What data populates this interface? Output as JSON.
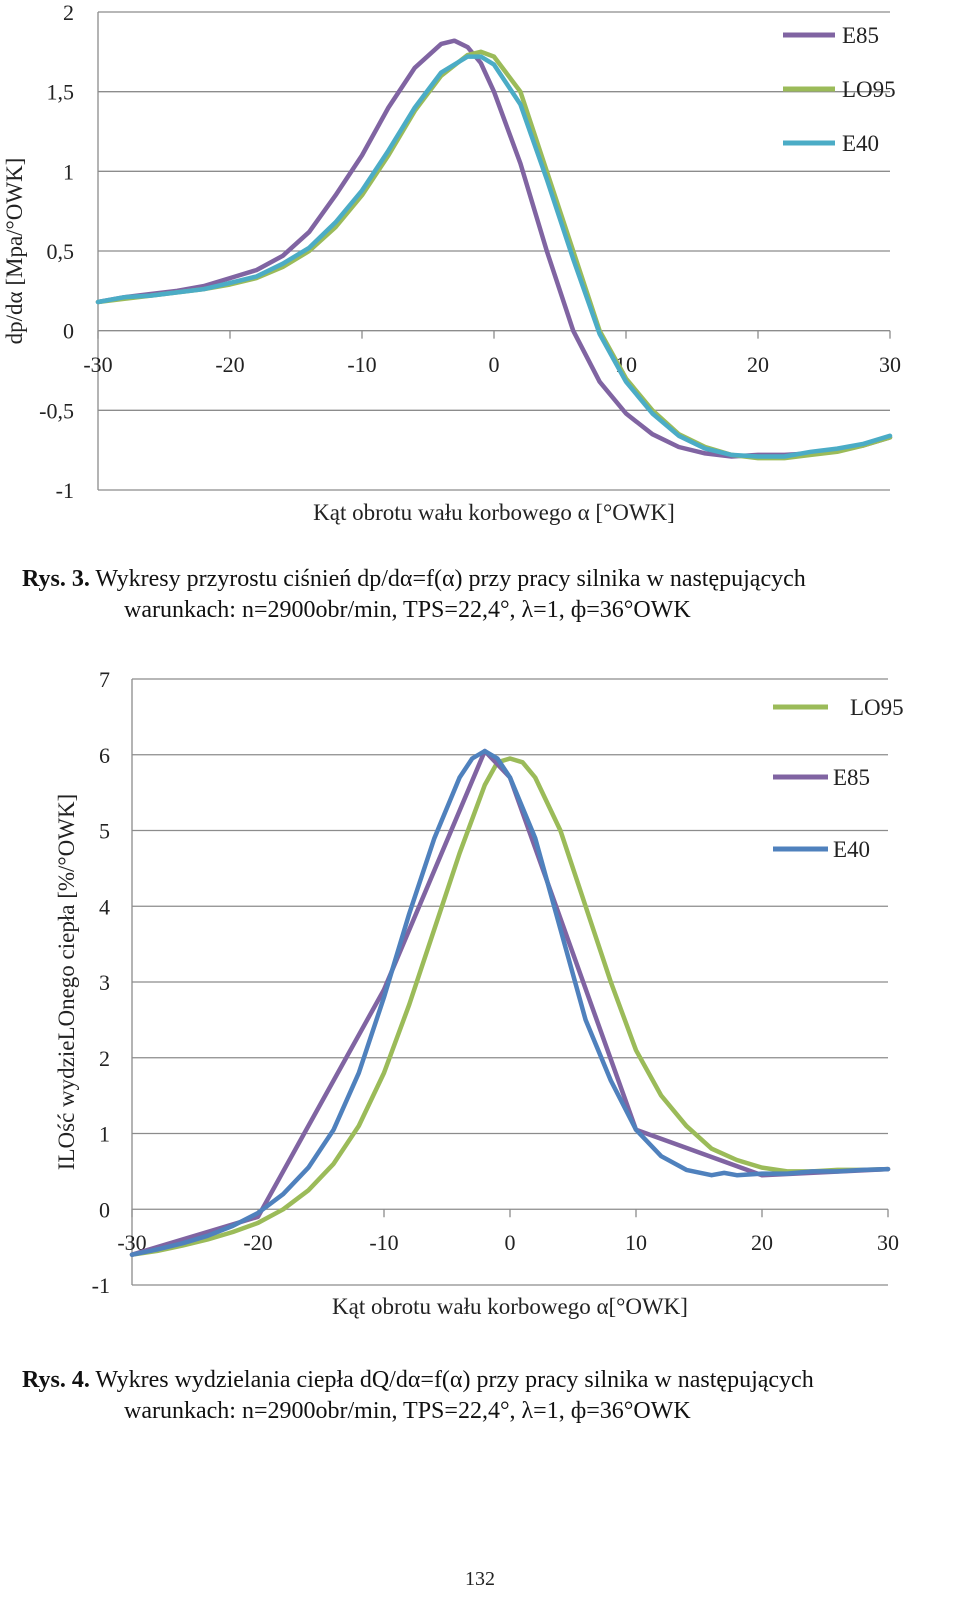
{
  "chart_data": [
    {
      "type": "line",
      "xlabel": "Kąt obrotu wału korbowego α [°OWK]",
      "ylabel": "dp/dα [Mpa/°OWK]",
      "xlim": [
        -30,
        30
      ],
      "ylim": [
        -1,
        2
      ],
      "x_ticks": [
        "-30",
        "-20",
        "-10",
        "0",
        "10",
        "20",
        "30"
      ],
      "y_ticks": [
        "2",
        "1,5",
        "1",
        "0,5",
        "0",
        "-0,5",
        "-1"
      ],
      "grid": "horizontal",
      "legend_position": "top-right",
      "series": [
        {
          "name": "E85",
          "color": "#8064a2",
          "x": [
            -30,
            -28,
            -26,
            -24,
            -22,
            -20,
            -18,
            -16,
            -14,
            -12,
            -10,
            -8,
            -6,
            -4,
            -3,
            -2,
            -1,
            0,
            2,
            4,
            6,
            8,
            10,
            12,
            14,
            16,
            18,
            20,
            22,
            24,
            26,
            28,
            30
          ],
          "y": [
            0.18,
            0.21,
            0.23,
            0.25,
            0.28,
            0.33,
            0.38,
            0.47,
            0.62,
            0.85,
            1.1,
            1.4,
            1.65,
            1.8,
            1.82,
            1.78,
            1.68,
            1.5,
            1.05,
            0.5,
            0.0,
            -0.32,
            -0.52,
            -0.65,
            -0.73,
            -0.77,
            -0.79,
            -0.78,
            -0.78,
            -0.77,
            -0.75,
            -0.72,
            -0.67
          ]
        },
        {
          "name": "LO95",
          "color": "#9bbb59",
          "x": [
            -30,
            -28,
            -26,
            -24,
            -22,
            -20,
            -18,
            -16,
            -14,
            -12,
            -10,
            -8,
            -6,
            -4,
            -2,
            -1,
            0,
            2,
            4,
            6,
            8,
            10,
            12,
            14,
            16,
            18,
            20,
            22,
            24,
            26,
            28,
            30
          ],
          "y": [
            0.18,
            0.2,
            0.22,
            0.24,
            0.26,
            0.29,
            0.33,
            0.4,
            0.5,
            0.65,
            0.85,
            1.1,
            1.38,
            1.6,
            1.73,
            1.75,
            1.72,
            1.5,
            1.0,
            0.5,
            0.0,
            -0.3,
            -0.5,
            -0.65,
            -0.73,
            -0.78,
            -0.8,
            -0.8,
            -0.78,
            -0.76,
            -0.72,
            -0.67
          ]
        },
        {
          "name": "E40",
          "color": "#4bacc6",
          "x": [
            -30,
            -28,
            -26,
            -24,
            -22,
            -20,
            -18,
            -16,
            -14,
            -12,
            -10,
            -8,
            -6,
            -4,
            -2,
            -1,
            0,
            2,
            4,
            6,
            8,
            10,
            12,
            14,
            16,
            18,
            20,
            22,
            24,
            26,
            28,
            30
          ],
          "y": [
            0.18,
            0.21,
            0.22,
            0.24,
            0.26,
            0.3,
            0.34,
            0.42,
            0.52,
            0.68,
            0.88,
            1.13,
            1.4,
            1.62,
            1.72,
            1.72,
            1.67,
            1.42,
            0.95,
            0.45,
            -0.02,
            -0.32,
            -0.52,
            -0.66,
            -0.74,
            -0.78,
            -0.79,
            -0.79,
            -0.76,
            -0.74,
            -0.71,
            -0.66
          ]
        }
      ]
    },
    {
      "type": "line",
      "xlabel": "Kąt obrotu wału korbowego α[°OWK]",
      "ylabel": "ILOść wydzieLOnego ciepła [%/°OWK]",
      "xlim": [
        -30,
        30
      ],
      "ylim": [
        -1,
        7
      ],
      "x_ticks": [
        "-30",
        "-20",
        "-10",
        "0",
        "10",
        "20",
        "30"
      ],
      "y_ticks": [
        "7",
        "6",
        "5",
        "4",
        "3",
        "2",
        "1",
        "0",
        "-1"
      ],
      "grid": "horizontal",
      "legend_position": "top-right",
      "series": [
        {
          "name": "LO95",
          "color": "#9bbb59",
          "x": [
            -30,
            -28,
            -26,
            -24,
            -22,
            -20,
            -18,
            -16,
            -14,
            -12,
            -10,
            -8,
            -6,
            -4,
            -2,
            -1,
            0,
            1,
            2,
            4,
            6,
            8,
            10,
            12,
            14,
            16,
            18,
            20,
            22,
            24,
            26,
            28,
            30
          ],
          "y": [
            -0.6,
            -0.55,
            -0.48,
            -0.4,
            -0.3,
            -0.18,
            0.0,
            0.25,
            0.6,
            1.1,
            1.8,
            2.7,
            3.7,
            4.7,
            5.6,
            5.9,
            5.95,
            5.9,
            5.7,
            5.0,
            4.0,
            3.0,
            2.1,
            1.5,
            1.1,
            0.8,
            0.65,
            0.55,
            0.5,
            0.5,
            0.52,
            0.52,
            0.53
          ]
        },
        {
          "name": "E85",
          "color": "#8064a2",
          "x": [
            -30,
            -20,
            -10,
            -2,
            0,
            10,
            20,
            30
          ],
          "y": [
            -0.6,
            -0.1,
            2.9,
            6.05,
            5.7,
            1.05,
            0.45,
            0.53
          ]
        },
        {
          "name": "E40",
          "color": "#4f81bd",
          "x": [
            -30,
            -28,
            -26,
            -24,
            -22,
            -20,
            -18,
            -16,
            -14,
            -12,
            -10,
            -8,
            -6,
            -4,
            -3,
            -2,
            -1,
            0,
            2,
            4,
            6,
            8,
            10,
            12,
            14,
            16,
            17,
            18,
            20,
            22,
            24,
            26,
            28,
            30
          ],
          "y": [
            -0.6,
            -0.53,
            -0.45,
            -0.35,
            -0.22,
            -0.05,
            0.2,
            0.55,
            1.05,
            1.8,
            2.8,
            3.9,
            4.9,
            5.7,
            5.95,
            6.05,
            5.95,
            5.7,
            4.9,
            3.7,
            2.5,
            1.7,
            1.05,
            0.7,
            0.52,
            0.45,
            0.48,
            0.45,
            0.47,
            0.47,
            0.5,
            0.5,
            0.52,
            0.53
          ]
        }
      ]
    }
  ],
  "captions": {
    "fig3_label": "Rys. 3.",
    "fig3_line1": " Wykresy przyrostu ciśnień dp/dα=f(α)  przy pracy silnika w następujących",
    "fig3_line2": "warunkach: n=2900obr/min,  TPS=22,4°, λ=1, ф=36°OWK",
    "fig4_label": "Rys. 4.",
    "fig4_line1": " Wykres wydzielania ciepła dQ/dα=f(α)  przy pracy silnika w następujących",
    "fig4_line2": "warunkach: n=2900obr/min,  TPS=22,4°, λ=1, ф=36°OWK"
  },
  "page_number": "132"
}
